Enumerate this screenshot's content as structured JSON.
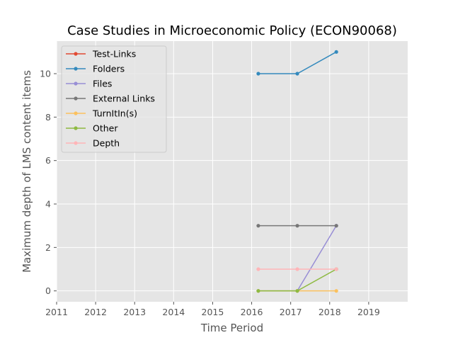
{
  "chart_data": {
    "type": "line",
    "title": "Case Studies in Microeconomic Policy (ECON90068)",
    "xlabel": "Time Period",
    "ylabel": "Maximum depth of LMS content items",
    "xlim": [
      2011,
      2020
    ],
    "ylim": [
      -0.5,
      11.5
    ],
    "x_ticks": [
      "2011",
      "2012",
      "2013",
      "2014",
      "2015",
      "2016",
      "2017",
      "2018",
      "2019"
    ],
    "y_ticks": [
      "0",
      "2",
      "4",
      "6",
      "8",
      "10"
    ],
    "grid": true,
    "legend_position": "upper-left",
    "x": [
      2016.17,
      2017.17,
      2018.17
    ],
    "series": [
      {
        "name": "Test-Links",
        "color": "#E24A33",
        "values": [
          null,
          null,
          null
        ]
      },
      {
        "name": "Folders",
        "color": "#348ABD",
        "values": [
          10,
          10,
          11
        ]
      },
      {
        "name": "Files",
        "color": "#988ED5",
        "values": [
          0,
          0,
          3
        ]
      },
      {
        "name": "External Links",
        "color": "#777777",
        "values": [
          3,
          3,
          3
        ]
      },
      {
        "name": "TurnItIn(s)",
        "color": "#FBC15E",
        "values": [
          0,
          0,
          0
        ]
      },
      {
        "name": "Other",
        "color": "#8EBA42",
        "values": [
          0,
          0,
          1
        ]
      },
      {
        "name": "Depth",
        "color": "#FFB5B8",
        "values": [
          1,
          1,
          1
        ]
      }
    ]
  }
}
